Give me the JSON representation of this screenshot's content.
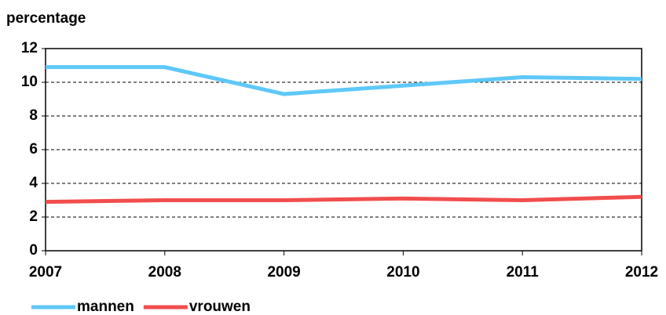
{
  "chart_data": {
    "type": "line",
    "y_label": "percentage",
    "x": [
      2007,
      2008,
      2009,
      2010,
      2011,
      2012
    ],
    "series": [
      {
        "name": "mannen",
        "color": "#5ec8f8",
        "values": [
          10.9,
          10.9,
          9.3,
          9.8,
          10.3,
          10.2
        ]
      },
      {
        "name": "vrouwen",
        "color": "#f24d4d",
        "values": [
          2.9,
          3.0,
          3.0,
          3.1,
          3.0,
          3.2
        ]
      }
    ],
    "xlim": [
      2007,
      2012
    ],
    "xticks": [
      2007,
      2008,
      2009,
      2010,
      2011,
      2012
    ],
    "ylim": [
      0,
      12
    ],
    "yticks": [
      0,
      2,
      4,
      6,
      8,
      10,
      12
    ],
    "grid": true,
    "legend": "bottom-left"
  }
}
